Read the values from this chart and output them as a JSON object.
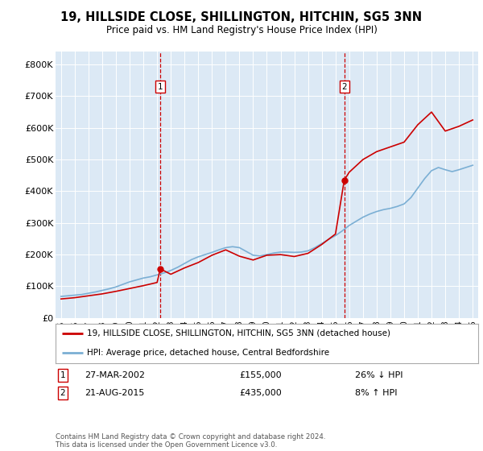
{
  "title": "19, HILLSIDE CLOSE, SHILLINGTON, HITCHIN, SG5 3NN",
  "subtitle": "Price paid vs. HM Land Registry's House Price Index (HPI)",
  "legend_line1": "19, HILLSIDE CLOSE, SHILLINGTON, HITCHIN, SG5 3NN (detached house)",
  "legend_line2": "HPI: Average price, detached house, Central Bedfordshire",
  "footer": "Contains HM Land Registry data © Crown copyright and database right 2024.\nThis data is licensed under the Open Government Licence v3.0.",
  "sale1_date": "27-MAR-2002",
  "sale1_price": "£155,000",
  "sale1_hpi": "26% ↓ HPI",
  "sale1_year": 2002.23,
  "sale1_value": 155000,
  "sale2_date": "21-AUG-2015",
  "sale2_price": "£435,000",
  "sale2_hpi": "8% ↑ HPI",
  "sale2_year": 2015.64,
  "sale2_value": 435000,
  "red_color": "#cc0000",
  "blue_color": "#7bafd4",
  "background_color": "#dce9f5",
  "ylim": [
    0,
    840000
  ],
  "xlim": [
    1994.6,
    2025.4
  ],
  "yticks": [
    0,
    100000,
    200000,
    300000,
    400000,
    500000,
    600000,
    700000,
    800000
  ],
  "ytick_labels": [
    "£0",
    "£100K",
    "£200K",
    "£300K",
    "£400K",
    "£500K",
    "£600K",
    "£700K",
    "£800K"
  ],
  "hpi_years": [
    1995.0,
    1995.5,
    1996.0,
    1996.5,
    1997.0,
    1997.5,
    1998.0,
    1998.5,
    1999.0,
    1999.5,
    2000.0,
    2000.5,
    2001.0,
    2001.5,
    2002.0,
    2002.5,
    2003.0,
    2003.5,
    2004.0,
    2004.5,
    2005.0,
    2005.5,
    2006.0,
    2006.5,
    2007.0,
    2007.5,
    2008.0,
    2008.5,
    2009.0,
    2009.5,
    2010.0,
    2010.5,
    2011.0,
    2011.5,
    2012.0,
    2012.5,
    2013.0,
    2013.5,
    2014.0,
    2014.5,
    2015.0,
    2015.5,
    2016.0,
    2016.5,
    2017.0,
    2017.5,
    2018.0,
    2018.5,
    2019.0,
    2019.5,
    2020.0,
    2020.5,
    2021.0,
    2021.5,
    2022.0,
    2022.5,
    2023.0,
    2023.5,
    2024.0,
    2024.5,
    2025.0
  ],
  "hpi_values": [
    68000,
    70000,
    72000,
    74000,
    78000,
    82000,
    87000,
    92000,
    98000,
    106000,
    114000,
    120000,
    126000,
    130000,
    136000,
    142000,
    150000,
    160000,
    172000,
    184000,
    193000,
    200000,
    207000,
    215000,
    222000,
    225000,
    222000,
    210000,
    198000,
    196000,
    200000,
    205000,
    208000,
    208000,
    207000,
    208000,
    212000,
    222000,
    235000,
    248000,
    260000,
    275000,
    292000,
    305000,
    318000,
    328000,
    336000,
    342000,
    346000,
    352000,
    360000,
    380000,
    410000,
    440000,
    465000,
    475000,
    468000,
    462000,
    468000,
    475000,
    482000
  ],
  "price_years": [
    1995.0,
    1996.0,
    1997.0,
    1998.0,
    1999.0,
    2000.0,
    2001.0,
    2002.0,
    2002.23,
    2003.0,
    2004.0,
    2005.0,
    2006.0,
    2007.0,
    2008.0,
    2009.0,
    2010.0,
    2011.0,
    2012.0,
    2013.0,
    2014.0,
    2015.0,
    2015.64,
    2016.0,
    2017.0,
    2018.0,
    2019.0,
    2020.0,
    2021.0,
    2022.0,
    2023.0,
    2024.0,
    2025.0
  ],
  "price_values": [
    60000,
    64000,
    70000,
    76000,
    84000,
    93000,
    102000,
    112000,
    155000,
    138000,
    158000,
    175000,
    198000,
    215000,
    195000,
    183000,
    198000,
    200000,
    194000,
    204000,
    232000,
    265000,
    435000,
    460000,
    500000,
    525000,
    540000,
    555000,
    610000,
    650000,
    590000,
    605000,
    625000
  ]
}
